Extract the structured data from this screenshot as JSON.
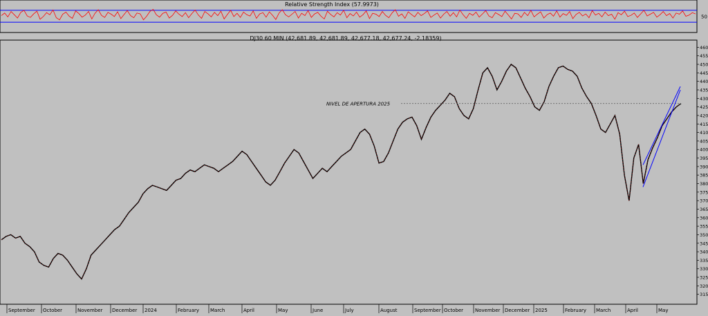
{
  "chart_data": [
    {
      "type": "line",
      "title": "Relative Strength Index (57.9973)",
      "y_ticks": [
        50
      ],
      "ylim": [
        0,
        100
      ],
      "reference_lines": [
        70,
        30
      ],
      "series": [
        {
          "color": "#ff0000",
          "values": [
            52,
            61,
            48,
            66,
            55,
            44,
            63,
            70,
            51,
            46,
            58,
            67,
            40,
            49,
            62,
            55,
            71,
            45,
            38,
            57,
            64,
            50,
            43,
            68,
            59,
            47,
            54,
            66,
            41,
            60,
            72,
            53,
            46,
            63,
            57,
            49,
            65,
            42,
            56,
            69,
            52,
            45,
            61,
            58,
            38,
            50,
            66,
            73,
            55,
            47,
            60,
            64,
            44,
            53,
            68,
            57,
            49,
            62,
            45,
            59,
            71,
            54,
            43,
            66,
            58,
            48,
            63,
            52,
            67,
            41,
            56,
            70,
            49,
            60,
            46,
            64,
            55,
            51,
            68,
            43,
            58,
            62,
            47,
            65,
            53,
            39,
            61,
            72,
            55,
            48,
            57,
            66,
            44,
            60,
            52,
            69,
            46,
            58,
            63,
            50,
            41,
            67,
            56,
            48,
            62,
            54,
            70,
            45,
            59,
            51,
            64,
            47,
            55,
            68,
            42,
            60,
            57,
            49,
            66,
            53,
            45,
            61,
            72,
            50,
            58,
            43,
            65,
            56,
            48,
            63,
            52,
            59,
            68,
            46,
            54,
            61,
            44,
            57,
            66,
            50,
            62,
            48,
            71,
            55,
            43,
            60,
            53,
            64,
            47,
            58,
            69,
            51,
            45,
            62,
            56,
            49,
            67,
            54,
            41,
            60,
            58,
            46,
            63,
            52,
            70,
            48,
            57,
            65,
            44,
            55,
            61,
            50,
            68,
            47,
            59,
            53,
            66,
            42,
            56,
            63,
            51,
            58,
            45,
            69,
            54,
            60,
            48,
            64,
            52,
            57,
            40,
            62,
            55,
            67,
            49,
            53,
            61,
            46,
            58,
            70,
            51,
            57,
            63,
            47,
            55,
            66,
            52,
            59,
            44,
            61,
            57,
            68,
            50,
            54,
            62,
            58
          ]
        }
      ]
    },
    {
      "type": "line",
      "title": "DJ30 60 MIN (42,681.89, 42,681.89, 42,677.18, 42,677.24, -2.18359)",
      "ylim": [
        31000,
        46300
      ],
      "y_ticks": [
        46000,
        45500,
        45000,
        44500,
        44000,
        43500,
        43000,
        42500,
        42000,
        41500,
        41000,
        40500,
        40000,
        39500,
        39000,
        38500,
        38000,
        37500,
        37000,
        36500,
        36000,
        35500,
        35000,
        34500,
        34000,
        33500,
        33000,
        32500,
        32000,
        31500
      ],
      "x_tick_labels": [
        "September",
        "October",
        "November",
        "December",
        "2024",
        "February",
        "March",
        "April",
        "May",
        "June",
        "July",
        "August",
        "September",
        "October",
        "November",
        "December",
        "2025",
        "February",
        "March",
        "April",
        "May"
      ],
      "annotation": {
        "text": "NIVEL DE APERTURA 2025",
        "value": 42700
      },
      "series": [
        {
          "color": "#000000",
          "values": [
            34700,
            34900,
            35000,
            34800,
            34900,
            34500,
            34300,
            34000,
            33400,
            33200,
            33100,
            33600,
            33900,
            33800,
            33500,
            33100,
            32700,
            32400,
            33000,
            33800,
            34100,
            34400,
            34700,
            35000,
            35300,
            35500,
            35900,
            36300,
            36600,
            36900,
            37400,
            37700,
            37900,
            37800,
            37700,
            37600,
            37900,
            38200,
            38300,
            38600,
            38800,
            38700,
            38900,
            39100,
            39000,
            38900,
            38700,
            38900,
            39100,
            39300,
            39600,
            39900,
            39700,
            39300,
            38900,
            38500,
            38100,
            37900,
            38200,
            38700,
            39200,
            39600,
            40000,
            39800,
            39300,
            38800,
            38300,
            38600,
            38900,
            38700,
            39000,
            39300,
            39600,
            39800,
            40000,
            40500,
            41000,
            41200,
            40900,
            40200,
            39200,
            39300,
            39800,
            40500,
            41200,
            41600,
            41800,
            41900,
            41400,
            40600,
            41300,
            41900,
            42300,
            42600,
            42900,
            43300,
            43100,
            42400,
            42000,
            41800,
            42400,
            43500,
            44500,
            44800,
            44300,
            43500,
            44000,
            44600,
            45000,
            44800,
            44200,
            43600,
            43100,
            42500,
            42300,
            42800,
            43700,
            44300,
            44800,
            44900,
            44700,
            44600,
            44300,
            43600,
            43100,
            42700,
            42000,
            41200,
            41000,
            41500,
            42000,
            40900,
            38500,
            37000,
            39500,
            40300,
            38000,
            39400,
            40100,
            40700,
            41400,
            41800,
            42200,
            42500,
            42700
          ]
        }
      ],
      "trend_lines": [
        {
          "color": "#0000ff",
          "points": [
            [
              0.0,
              37800
            ],
            [
              1.0,
              43500
            ]
          ]
        },
        {
          "color": "#0000ff",
          "points": [
            [
              0.0,
              39100
            ],
            [
              1.0,
              43700
            ]
          ]
        }
      ]
    }
  ]
}
